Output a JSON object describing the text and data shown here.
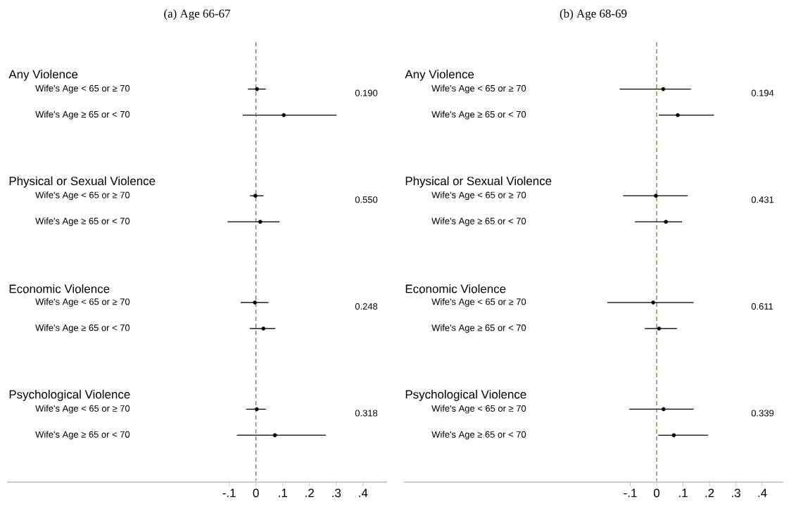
{
  "chart_data": [
    {
      "type": "scatter",
      "title": "(a) Age 66-67",
      "orientation": "horizontal",
      "marker": "circle",
      "color": "#000000",
      "categories": [
        "Wife's Age < 65 or ≥ 70",
        "Wife's Age ≥ 65 or < 70",
        "Wife's Age < 65 or ≥ 70",
        "Wife's Age ≥ 65 or < 70",
        "Wife's Age < 65 or ≥ 70",
        "Wife's Age ≥ 65 or < 70",
        "Wife's Age < 65 or ≥ 70",
        "Wife's Age ≥ 65 or < 70"
      ],
      "values": [
        0.004,
        0.104,
        -0.002,
        0.016,
        -0.004,
        0.028,
        0.003,
        0.071
      ],
      "errors": [
        [
          -0.03,
          0.037
        ],
        [
          -0.049,
          0.301
        ],
        [
          -0.022,
          0.028
        ],
        [
          -0.106,
          0.088
        ],
        [
          -0.057,
          0.047
        ],
        [
          -0.023,
          0.072
        ],
        [
          -0.037,
          0.037
        ],
        [
          -0.071,
          0.261
        ]
      ],
      "xlim": [
        -0.93,
        0.49
      ],
      "xticks": [
        {
          "value": -0.1,
          "label": "-.1"
        },
        0,
        {
          "value": 0.1,
          "label": ".1"
        },
        {
          "value": 0.2,
          "label": ".2"
        },
        {
          "value": 0.3,
          "label": ".3"
        },
        {
          "value": 0.4,
          "label": ".4"
        }
      ],
      "ref_lines": [
        {
          "axis": "x",
          "value": 0,
          "color": "#5a7f32",
          "line_style": "dashed"
        }
      ],
      "annotations": [
        "Any Violence",
        "0.190",
        "Physical or Sexual Violence",
        "0.550",
        "Economic Violence",
        "0.248",
        "Psychological Violence",
        "0.318"
      ]
    },
    {
      "type": "scatter",
      "title": "(b) Age 68-69",
      "orientation": "horizontal",
      "marker": "circle",
      "color": "#000000",
      "categories": [
        "Wife's Age < 65 or ≥ 70",
        "Wife's Age ≥ 65 or < 70",
        "Wife's Age < 65 or ≥ 70",
        "Wife's Age ≥ 65 or < 70",
        "Wife's Age < 65 or ≥ 70",
        "Wife's Age ≥ 65 or < 70",
        "Wife's Age < 65 or ≥ 70",
        "Wife's Age ≥ 65 or < 70"
      ],
      "values": [
        0.025,
        0.08,
        -0.003,
        0.035,
        -0.013,
        0.009,
        0.026,
        0.065
      ],
      "errors": [
        [
          -0.14,
          0.13
        ],
        [
          0.008,
          0.217
        ],
        [
          -0.127,
          0.118
        ],
        [
          -0.082,
          0.096
        ],
        [
          -0.187,
          0.14
        ],
        [
          -0.045,
          0.077
        ],
        [
          -0.104,
          0.14
        ],
        [
          0.006,
          0.195
        ]
      ],
      "xlim": [
        -0.96,
        0.48
      ],
      "xticks": [
        {
          "value": -0.1,
          "label": "-.1"
        },
        0,
        {
          "value": 0.1,
          "label": ".1"
        },
        {
          "value": 0.2,
          "label": ".2"
        },
        {
          "value": 0.3,
          "label": ".3"
        },
        {
          "value": 0.4,
          "label": ".4"
        }
      ],
      "ref_lines": [
        {
          "axis": "x",
          "value": 0,
          "color": "#5a7f32",
          "line_style": "dashed"
        }
      ],
      "annotations": [
        "Any Violence",
        "0.194",
        "Physical or Sexual Violence",
        "0.431",
        "Economic Violence",
        "0.611",
        "Psychological Violence",
        "0.339"
      ]
    }
  ]
}
